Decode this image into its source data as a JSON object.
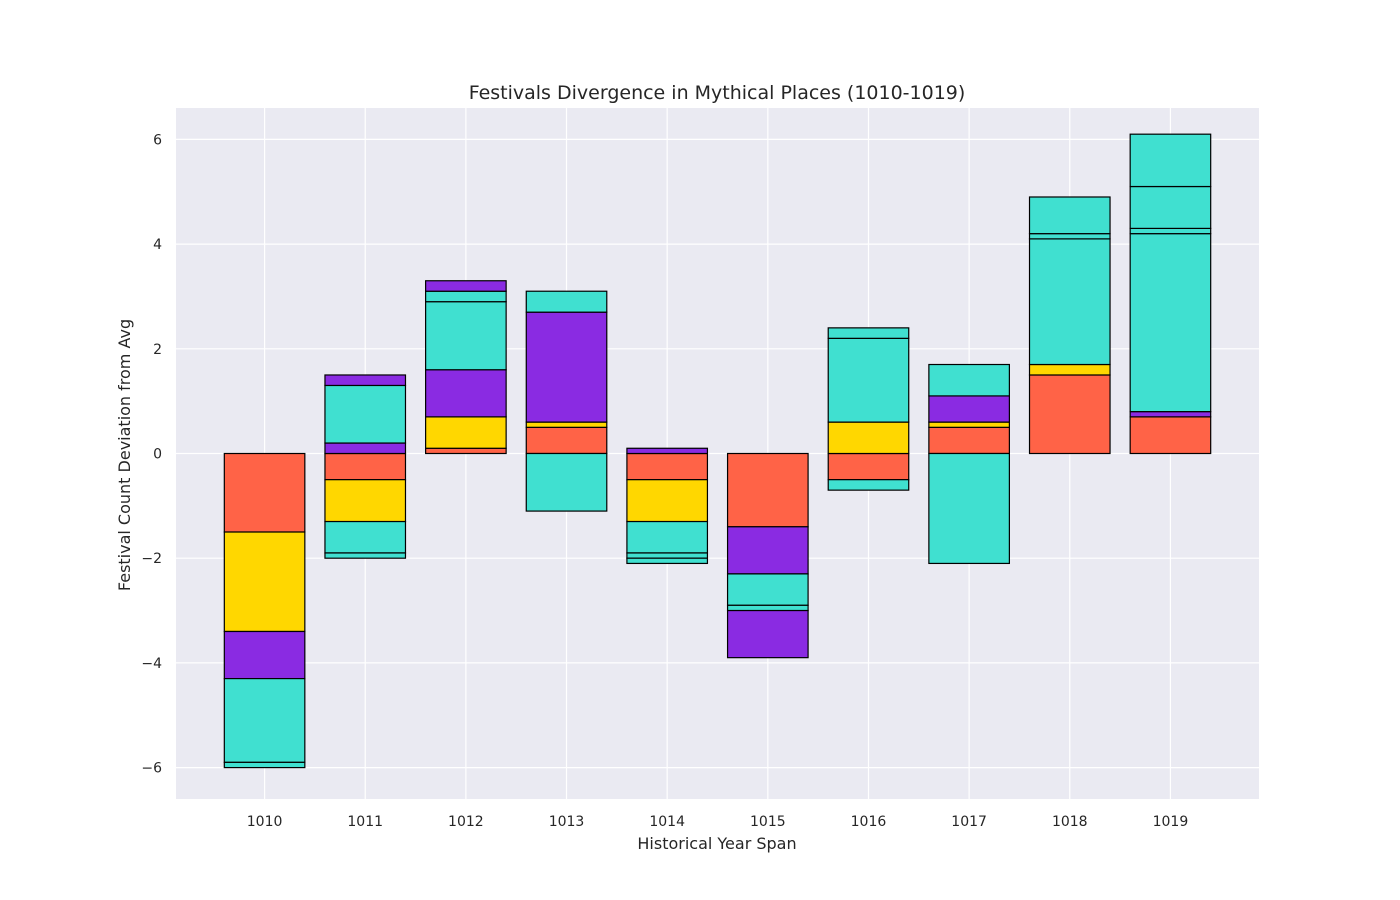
{
  "chart_data": {
    "type": "bar",
    "stacked": true,
    "title": "Festivals Divergence in Mythical Places (1010-1019)",
    "xlabel": "Historical Year Span",
    "ylabel": "Festival Count Deviation from Avg",
    "categories": [
      "1010",
      "1011",
      "1012",
      "1013",
      "1014",
      "1015",
      "1016",
      "1017",
      "1018",
      "1019"
    ],
    "ylim": [
      -6.6,
      6.6
    ],
    "yticks": [
      -6,
      -4,
      -2,
      0,
      2,
      4,
      6
    ],
    "grid": true,
    "colors": {
      "coral": "#ff6347",
      "gold": "#ffd700",
      "violet": "#8a2be2",
      "turquoise": "#40e0d0",
      "plot_background": "#eaeaf2"
    },
    "series": [
      {
        "color": "#ff6347",
        "values": [
          -1.5,
          -0.5,
          0.1,
          0.5,
          -0.5,
          -1.4,
          -0.5,
          0.5,
          1.5,
          0.7
        ]
      },
      {
        "color": "#ffd700",
        "values": [
          -1.9,
          -0.8,
          0.6,
          0.1,
          -0.8,
          0.0,
          0.6,
          0.1,
          0.2,
          0.0
        ]
      },
      {
        "color": "#8a2be2",
        "values": [
          -0.9,
          0.2,
          0.9,
          2.1,
          0.1,
          -0.9,
          0.0,
          0.5,
          0.0,
          0.1
        ]
      },
      {
        "color": "#40e0d0",
        "values": [
          -1.6,
          -0.6,
          1.3,
          0.4,
          -0.6,
          -0.6,
          1.6,
          0.6,
          2.4,
          3.4
        ]
      },
      {
        "color": "#40e0d0",
        "values": [
          -0.1,
          1.1,
          0.2,
          -1.1,
          -0.1,
          -0.1,
          0.2,
          -2.1,
          0.1,
          0.1
        ]
      },
      {
        "color": "#8a2be2",
        "values": [
          0.0,
          0.2,
          0.2,
          0.0,
          0.0,
          -0.9,
          0.0,
          0.0,
          0.0,
          0.0
        ]
      },
      {
        "color": "#40e0d0",
        "values": [
          0.0,
          -0.1,
          0.0,
          0.0,
          -0.1,
          0.0,
          -0.2,
          0.0,
          0.7,
          0.8
        ]
      },
      {
        "color": "#40e0d0",
        "values": [
          0.0,
          0.0,
          0.0,
          0.0,
          0.0,
          0.0,
          0.0,
          0.0,
          0.0,
          1.0
        ]
      }
    ]
  }
}
